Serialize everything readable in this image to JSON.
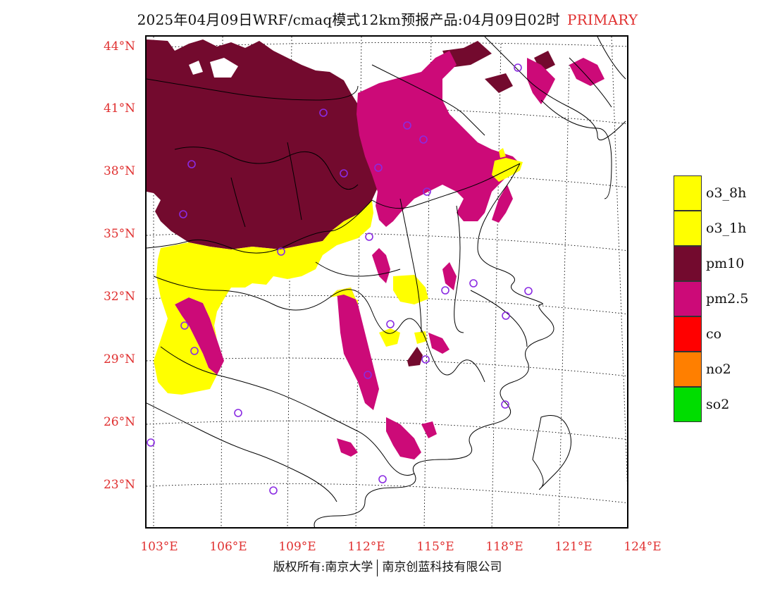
{
  "title": {
    "main": "2025年04月09日WRF/cmaq模式12km预报产品:04月09日02时",
    "tag": "PRIMARY"
  },
  "colors": {
    "label_red": "#e03030",
    "o3_8h": "#ffff00",
    "o3_1h": "#ffff00",
    "pm10": "#730a2e",
    "pm25": "#cc0a78",
    "co": "#ff0000",
    "no2": "#ff7f00",
    "so2": "#00dd00",
    "station_marker": "#8a2be2"
  },
  "map": {
    "lat_labels": [
      "44°N",
      "41°N",
      "38°N",
      "35°N",
      "32°N",
      "29°N",
      "26°N",
      "23°N"
    ],
    "lon_labels": [
      "103°E",
      "106°E",
      "109°E",
      "112°E",
      "115°E",
      "118°E",
      "121°E",
      "124°E"
    ]
  },
  "legend": {
    "items": [
      {
        "label": "o3_8h",
        "color": "#ffff00"
      },
      {
        "label": "o3_1h",
        "color": "#ffff00"
      },
      {
        "label": "pm10",
        "color": "#730a2e"
      },
      {
        "label": "pm2.5",
        "color": "#cc0a78"
      },
      {
        "label": "co",
        "color": "#ff0000"
      },
      {
        "label": "no2",
        "color": "#ff7f00"
      },
      {
        "label": "so2",
        "color": "#00dd00"
      }
    ]
  },
  "footer": {
    "left": "版权所有:南京大学",
    "right": "南京创蓝科技有限公司"
  }
}
